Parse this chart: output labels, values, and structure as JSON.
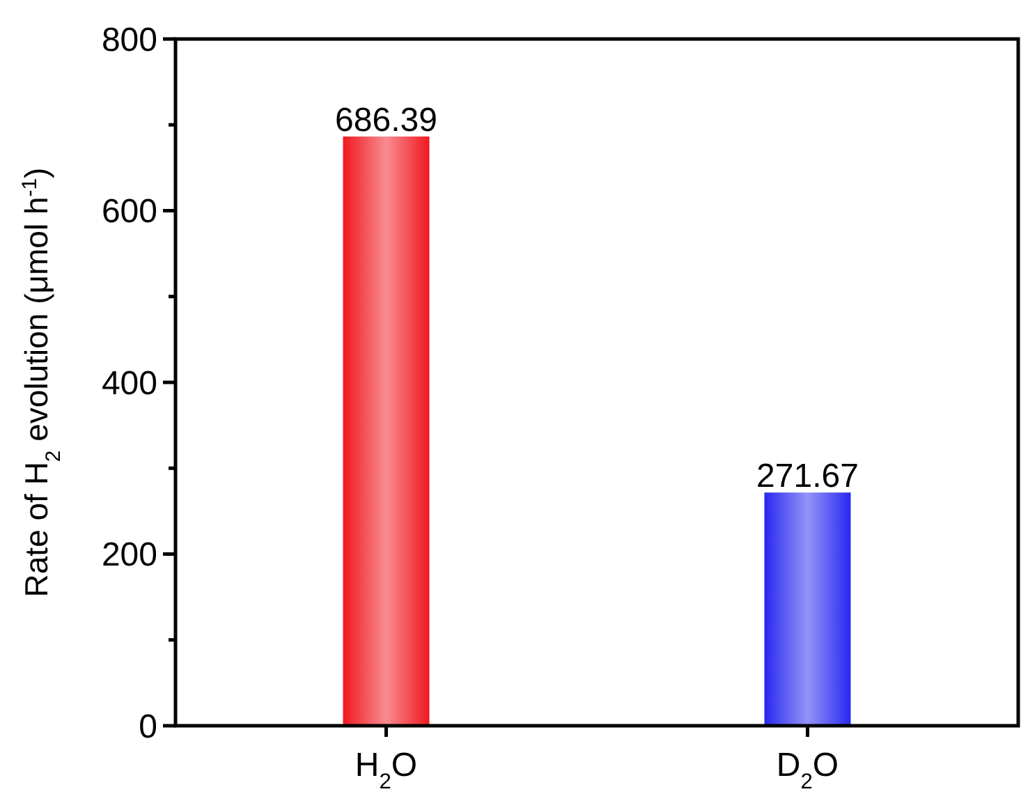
{
  "chart_data": {
    "type": "bar",
    "categories": [
      "H$_{2}$O",
      "D$_{2}$O"
    ],
    "values": [
      686.39,
      271.67
    ],
    "colors": [
      "#f01820",
      "#2828f0"
    ],
    "ylabel": "Rate of H$_{2}$ evolution (μmol h$^{-1}$)",
    "ylim": [
      0,
      800
    ],
    "yticks": [
      0,
      {
        "value": 100,
        "label": null
      },
      200,
      {
        "value": 300,
        "label": null
      },
      400,
      {
        "value": 500,
        "label": null
      },
      600,
      {
        "value": 700,
        "label": null
      },
      800
    ],
    "data_labels": true
  }
}
